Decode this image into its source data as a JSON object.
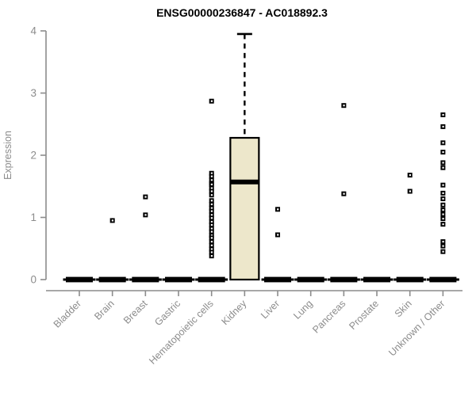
{
  "chart_data": {
    "type": "boxplot",
    "title": "ENSG00000236847 - AC018892.3",
    "xlabel": "",
    "ylabel": "Expression",
    "ylim": [
      0,
      4
    ],
    "yticks": [
      0,
      1,
      2,
      3,
      4
    ],
    "grid": false,
    "legend": "none",
    "categories": [
      "Bladder",
      "Brain",
      "Breast",
      "Gastric",
      "Hematopoietic cells",
      "Kidney",
      "Liver",
      "Lung",
      "Pancreas",
      "Prostate",
      "Skin",
      "Unknown / Other"
    ],
    "boxes": [
      {
        "category": "Bladder",
        "low": 0,
        "q1": 0,
        "median": 0,
        "q3": 0,
        "high": 0,
        "outliers": []
      },
      {
        "category": "Brain",
        "low": 0,
        "q1": 0,
        "median": 0,
        "q3": 0,
        "high": 0,
        "outliers": [
          0.95
        ]
      },
      {
        "category": "Breast",
        "low": 0,
        "q1": 0,
        "median": 0,
        "q3": 0,
        "high": 0,
        "outliers": [
          1.33,
          1.04
        ]
      },
      {
        "category": "Gastric",
        "low": 0,
        "q1": 0,
        "median": 0,
        "q3": 0,
        "high": 0,
        "outliers": []
      },
      {
        "category": "Hematopoietic cells",
        "low": 0,
        "q1": 0,
        "median": 0,
        "q3": 0,
        "high": 0,
        "outliers": [
          2.87,
          1.71,
          1.66,
          1.6,
          1.55,
          1.53,
          1.47,
          1.42,
          1.36,
          1.27,
          1.21,
          1.15,
          1.1,
          1.04,
          0.99,
          0.93,
          0.88,
          0.82,
          0.77,
          0.71,
          0.67,
          0.61,
          0.55,
          0.49,
          0.44,
          0.38
        ]
      },
      {
        "category": "Kidney",
        "low": 0,
        "q1": 0,
        "median": 1.57,
        "q3": 2.28,
        "high": 3.95,
        "outliers": []
      },
      {
        "category": "Liver",
        "low": 0,
        "q1": 0,
        "median": 0,
        "q3": 0,
        "high": 0,
        "outliers": [
          1.13,
          0.72
        ]
      },
      {
        "category": "Lung",
        "low": 0,
        "q1": 0,
        "median": 0,
        "q3": 0,
        "high": 0,
        "outliers": []
      },
      {
        "category": "Pancreas",
        "low": 0,
        "q1": 0,
        "median": 0,
        "q3": 0,
        "high": 0,
        "outliers": [
          2.8,
          1.38
        ]
      },
      {
        "category": "Prostate",
        "low": 0,
        "q1": 0,
        "median": 0,
        "q3": 0,
        "high": 0,
        "outliers": []
      },
      {
        "category": "Skin",
        "low": 0,
        "q1": 0,
        "median": 0,
        "q3": 0,
        "high": 0,
        "outliers": [
          1.68,
          1.42
        ]
      },
      {
        "category": "Unknown / Other",
        "low": 0,
        "q1": 0,
        "median": 0,
        "q3": 0,
        "high": 0,
        "outliers": [
          2.65,
          2.46,
          2.2,
          2.05,
          1.88,
          1.8,
          1.52,
          1.39,
          1.3,
          1.2,
          1.12,
          1.05,
          0.98,
          0.89,
          0.61,
          0.54,
          0.45
        ]
      }
    ],
    "colors": {
      "box_fill": "#EDE7CB",
      "box_stroke": "#000000",
      "median": "#000000",
      "outlier": "#000000",
      "axis": "#8C8C8C",
      "tick_label": "#8C8C8C",
      "title": "#000000",
      "background": "#FFFFFF"
    }
  }
}
